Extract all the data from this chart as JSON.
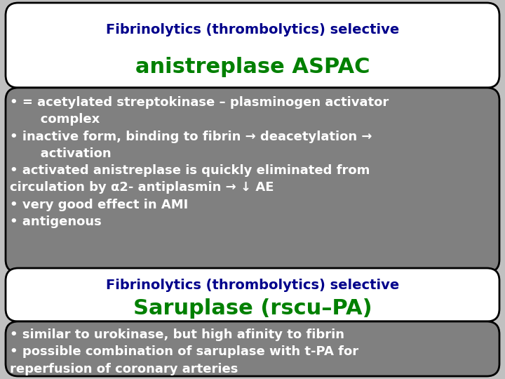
{
  "bg_color": "#c0c0c0",
  "box1_bg": "#ffffff",
  "box2_bg": "#808080",
  "box3_bg": "#ffffff",
  "box4_bg": "#808080",
  "box1_title_line1": "Fibrinolytics (thrombolytics) selective",
  "box1_title_line2": "anistreplase ASPAC",
  "box1_title_line1_color": "#00008B",
  "box1_title_line2_color": "#008000",
  "box2_text": "• = acetylated streptokinase – plasminogen activator\n       complex\n• inactive form, binding to fibrin → deacetylation →\n       activation\n• activated anistreplase is quickly eliminated from\ncirculation by α2- antiplasmin → ↓ AE\n• very good effect in AMI\n• antigenous",
  "box2_text_color": "#ffffff",
  "box3_title_line1": "Fibrinolytics (thrombolytics) selective",
  "box3_title_line2": "Saruplase (rscu–PA)",
  "box3_title_line1_color": "#00008B",
  "box3_title_line2_color": "#008000",
  "box4_text": "• similar to urokinase, but high afinity to fibrin\n• possible combination of saruplase with t-PA for\nreperfusion of coronary arteries",
  "box4_text_color": "#ffffff",
  "border_color": "#000000",
  "font_size_title1": 14,
  "font_size_title2": 22,
  "font_size_body": 13
}
